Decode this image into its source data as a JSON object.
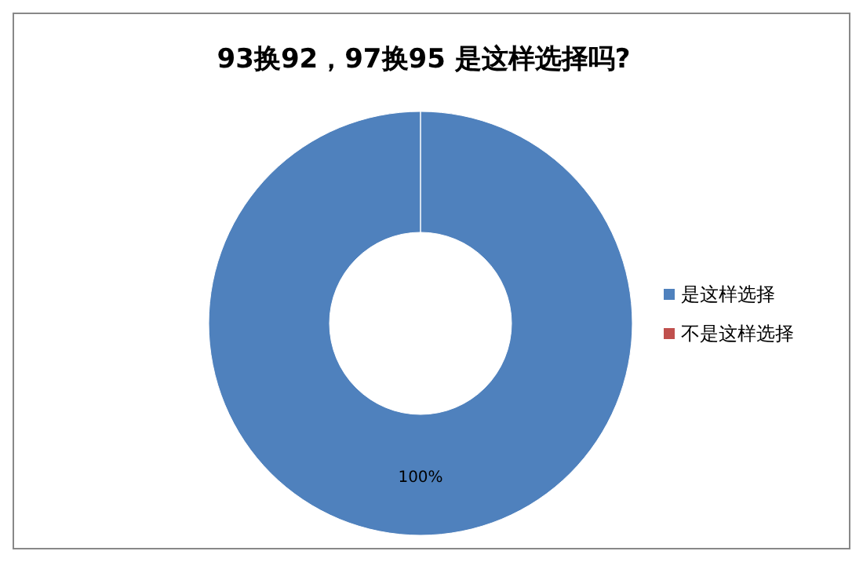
{
  "chart_data": {
    "type": "donut",
    "title": "93换92，97换95 是这样选择吗?",
    "categories": [
      "是这样选择",
      "不是这样选择"
    ],
    "values": [
      100,
      0
    ],
    "colors": [
      "#4f81bd",
      "#c0504d"
    ],
    "value_labels": [
      "100%",
      null
    ],
    "legend": "right"
  }
}
